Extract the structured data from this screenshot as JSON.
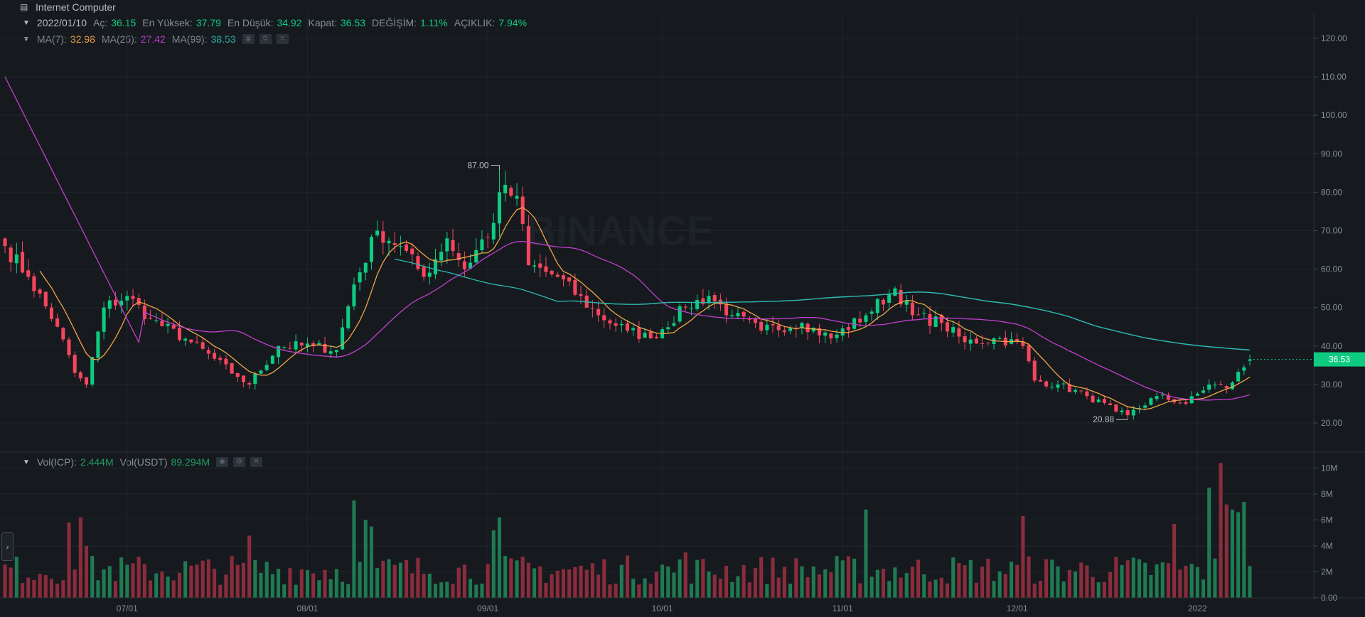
{
  "window": {
    "title": "Internet Computer"
  },
  "ohlc_header": {
    "date": "2022/01/10",
    "open_label": "Aç:",
    "open": "36.15",
    "high_label": "En Yüksek:",
    "high": "37.79",
    "low_label": "En Düşük:",
    "low": "34.92",
    "close_label": "Kapat:",
    "close": "36.53",
    "change_label": "DEĞİŞİM:",
    "change": "1.11%",
    "amplitude_label": "AÇIKLIK:",
    "amplitude": "7.94%"
  },
  "ma_header": {
    "ma7_label": "MA(7):",
    "ma7": "32.98",
    "ma25_label": "MA(25):",
    "ma25": "27.42",
    "ma99_label": "MA(99):",
    "ma99": "38.53"
  },
  "vol_header": {
    "vol_icp_label": "Vol(ICP):",
    "vol_icp": "2.444M",
    "vol_usdt_label": "Vol(USDT)",
    "vol_usdt": "89.294M"
  },
  "watermark": "BINANCE",
  "colors": {
    "up": "#0ecb81",
    "down": "#f6465d",
    "vol_up": "#1f7a52",
    "vol_down": "#8b2c3c",
    "ma7": "#f0a646",
    "ma25": "#c23fd0",
    "ma99": "#2db7b1",
    "text": "#848e9c",
    "grid": "#1f252c"
  },
  "chart_data": [
    {
      "type": "candlestick",
      "title": "",
      "price_axis_ticks": [
        "120.00",
        "110.00",
        "100.00",
        "90.00",
        "80.00",
        "70.00",
        "60.00",
        "50.00",
        "40.00",
        "30.00",
        "20.00"
      ],
      "ylim": [
        16,
        126
      ],
      "date_axis_ticks": [
        "07/01",
        "08/01",
        "09/01",
        "10/01",
        "11/01",
        "12/01",
        "2022"
      ],
      "date_range": [
        "2021-06-10",
        "2022-01-10"
      ],
      "last_price": "36.53",
      "annotations": [
        {
          "text": "87.00",
          "date": "2021-09-03",
          "value": 87.0
        },
        {
          "text": "20.88",
          "date": "2021-12-20",
          "value": 20.88
        }
      ],
      "key_closes": [
        {
          "date": "2021-06-10",
          "close": 66
        },
        {
          "date": "2021-06-14",
          "close": 58
        },
        {
          "date": "2021-06-19",
          "close": 45
        },
        {
          "date": "2021-06-22",
          "close": 33
        },
        {
          "date": "2021-06-24",
          "close": 30
        },
        {
          "date": "2021-06-27",
          "close": 50
        },
        {
          "date": "2021-07-01",
          "close": 53
        },
        {
          "date": "2021-07-05",
          "close": 47
        },
        {
          "date": "2021-07-12",
          "close": 41
        },
        {
          "date": "2021-07-20",
          "close": 32
        },
        {
          "date": "2021-07-22",
          "close": 30
        },
        {
          "date": "2021-07-27",
          "close": 40
        },
        {
          "date": "2021-08-02",
          "close": 40
        },
        {
          "date": "2021-08-06",
          "close": 39
        },
        {
          "date": "2021-08-09",
          "close": 56
        },
        {
          "date": "2021-08-13",
          "close": 70
        },
        {
          "date": "2021-08-17",
          "close": 66
        },
        {
          "date": "2021-08-21",
          "close": 58
        },
        {
          "date": "2021-08-25",
          "close": 68
        },
        {
          "date": "2021-08-28",
          "close": 60
        },
        {
          "date": "2021-09-02",
          "close": 72
        },
        {
          "date": "2021-09-03",
          "close": 80
        },
        {
          "date": "2021-09-06",
          "close": 79
        },
        {
          "date": "2021-09-08",
          "close": 61
        },
        {
          "date": "2021-09-13",
          "close": 58
        },
        {
          "date": "2021-09-20",
          "close": 48
        },
        {
          "date": "2021-09-25",
          "close": 44
        },
        {
          "date": "2021-09-29",
          "close": 42
        },
        {
          "date": "2021-10-05",
          "close": 50
        },
        {
          "date": "2021-10-09",
          "close": 53
        },
        {
          "date": "2021-10-13",
          "close": 48
        },
        {
          "date": "2021-10-18",
          "close": 44
        },
        {
          "date": "2021-10-25",
          "close": 46
        },
        {
          "date": "2021-10-30",
          "close": 42
        },
        {
          "date": "2021-11-05",
          "close": 48
        },
        {
          "date": "2021-11-10",
          "close": 55
        },
        {
          "date": "2021-11-13",
          "close": 48
        },
        {
          "date": "2021-11-18",
          "close": 46
        },
        {
          "date": "2021-11-22",
          "close": 41
        },
        {
          "date": "2021-11-28",
          "close": 42
        },
        {
          "date": "2021-12-02",
          "close": 40
        },
        {
          "date": "2021-12-04",
          "close": 31
        },
        {
          "date": "2021-12-08",
          "close": 30
        },
        {
          "date": "2021-12-13",
          "close": 27
        },
        {
          "date": "2021-12-18",
          "close": 23
        },
        {
          "date": "2021-12-20",
          "close": 22
        },
        {
          "date": "2021-12-25",
          "close": 27
        },
        {
          "date": "2021-12-30",
          "close": 25
        },
        {
          "date": "2022-01-03",
          "close": 30
        },
        {
          "date": "2022-01-06",
          "close": 29
        },
        {
          "date": "2022-01-10",
          "close": 36.53
        }
      ],
      "series": [
        {
          "name": "MA(7)",
          "last_value": 32.98
        },
        {
          "name": "MA(25)",
          "last_value": 27.42
        },
        {
          "name": "MA(99)",
          "last_value": 38.53
        }
      ],
      "grid": true,
      "legend": "top-left"
    },
    {
      "type": "bar",
      "title": "",
      "volume_axis_ticks": [
        "10M",
        "8M",
        "6M",
        "4M",
        "2M",
        "0.00"
      ],
      "ylim": [
        0,
        10.5
      ],
      "unit": "M",
      "last_volume": "2.444M",
      "peak_volume": {
        "date": "2022-01-05",
        "value": 10.4
      }
    }
  ]
}
